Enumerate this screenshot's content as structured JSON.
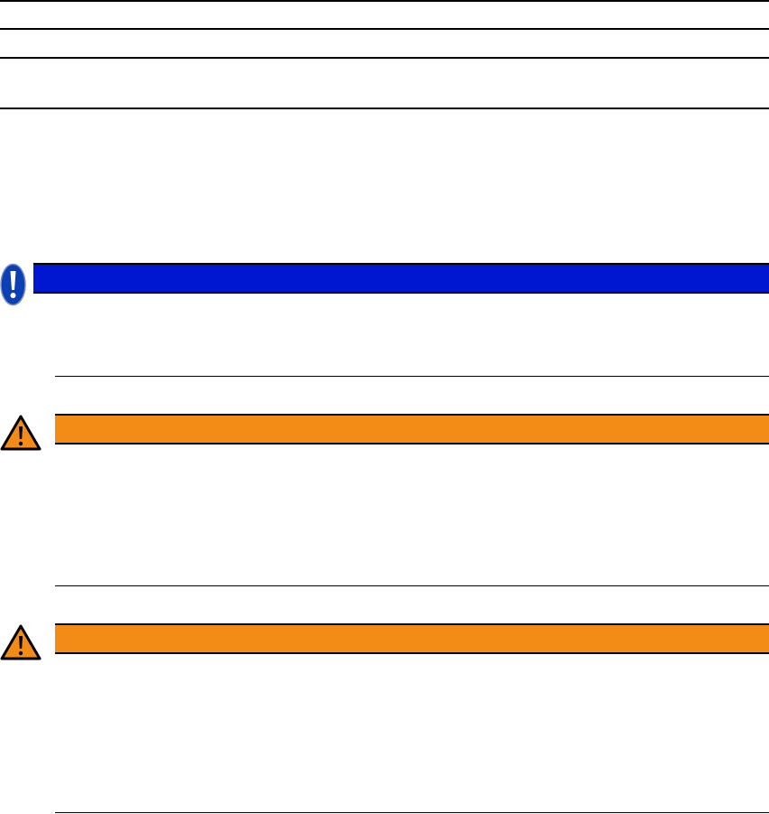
{
  "colors": {
    "notice": "#0017d1",
    "warning": "#f28c17"
  },
  "notices": [
    {
      "type": "notice",
      "icon": "exclamation-circle-icon"
    },
    {
      "type": "warning",
      "icon": "warning-triangle-icon"
    },
    {
      "type": "warning",
      "icon": "warning-triangle-icon"
    }
  ]
}
